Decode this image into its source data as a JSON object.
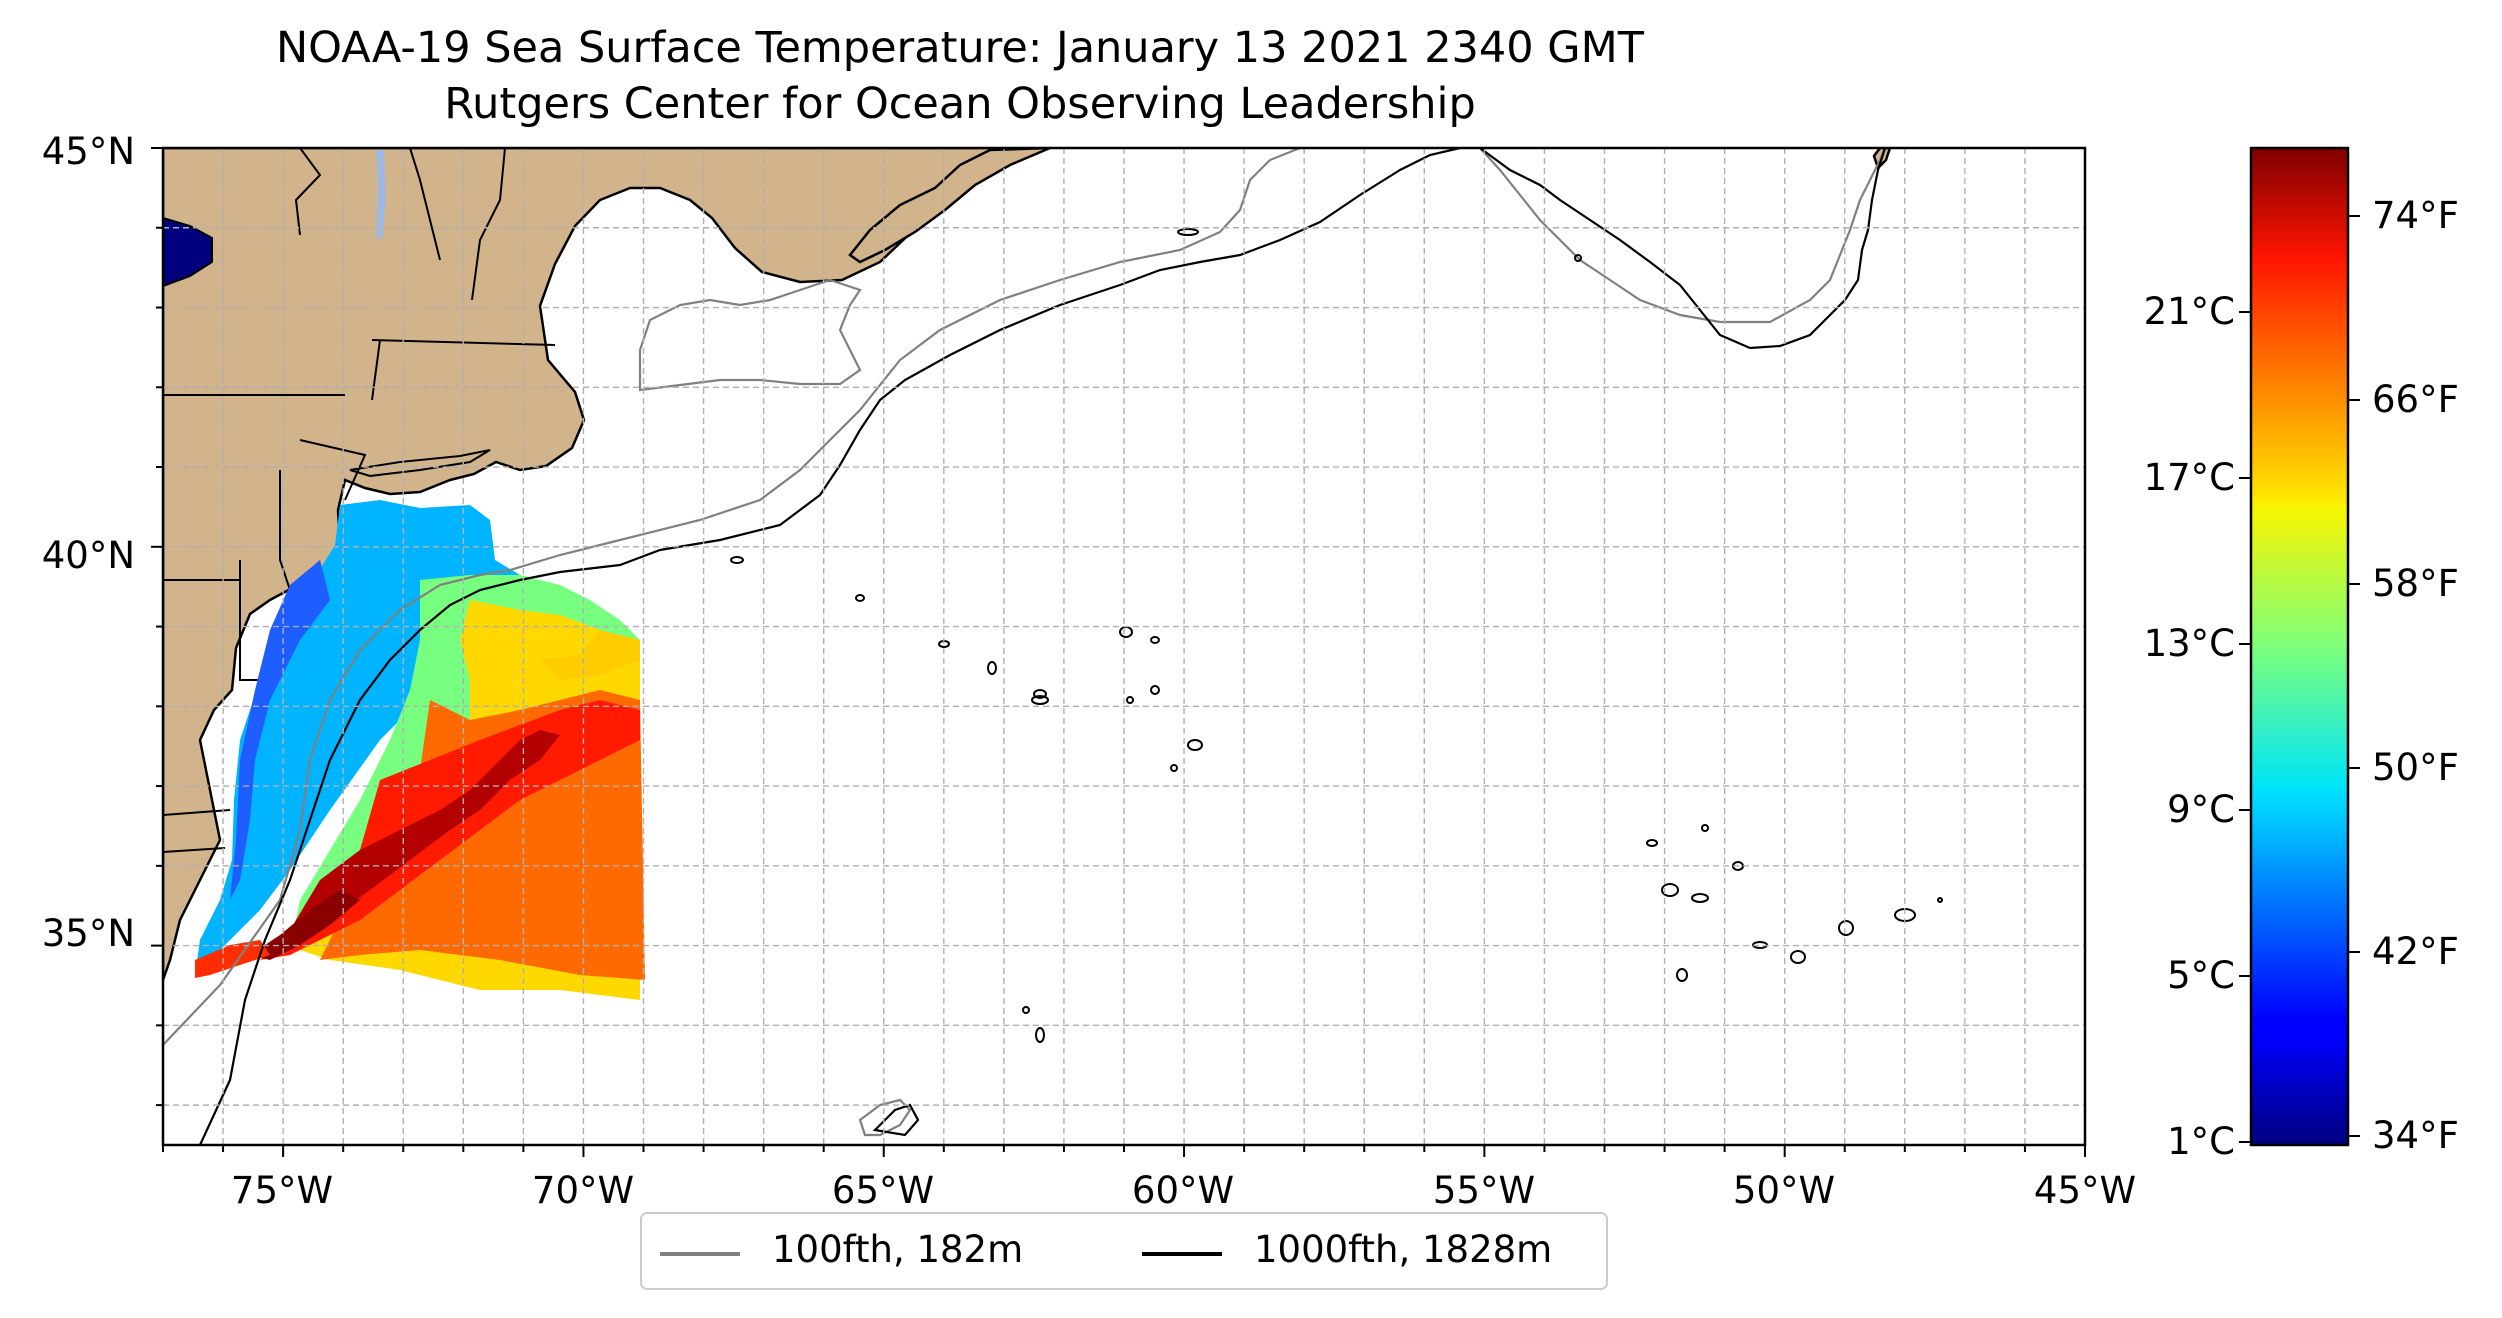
{
  "title": {
    "line1": "NOAA-19 Sea Surface Temperature: January 13 2021 2340 GMT",
    "line2": "Rutgers Center for Ocean Observing Leadership"
  },
  "map": {
    "lon_range": [
      -77,
      -45
    ],
    "lat_range": [
      32.5,
      45
    ],
    "gridlines": "dashed, every 1 degree",
    "land_color": "#D2B48C",
    "lat_ticks": [
      "45°N",
      "40°N",
      "35°N"
    ],
    "lon_ticks": [
      "75°W",
      "70°W",
      "65°W",
      "60°W",
      "55°W",
      "50°W",
      "45°W"
    ]
  },
  "colorbar": {
    "colormap": "jet",
    "celsius_ticks": [
      "21°C",
      "17°C",
      "13°C",
      "9°C",
      "5°C",
      "1°C"
    ],
    "fahrenheit_ticks": [
      "74°F",
      "66°F",
      "58°F",
      "50°F",
      "42°F",
      "34°F"
    ]
  },
  "legend": {
    "placement": "bottom-center",
    "items": [
      {
        "label": "100fth, 182m",
        "color": "#808080"
      },
      {
        "label": "1000fth, 1828m",
        "color": "#000000"
      }
    ]
  }
}
